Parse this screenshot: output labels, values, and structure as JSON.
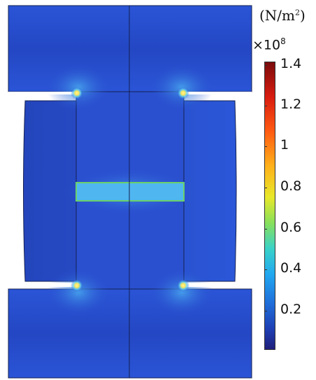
{
  "figure": {
    "units_prefix": "(N/m",
    "units_power": "2",
    "units_suffix": ")",
    "scale_base": "×10",
    "scale_exponent": "8",
    "colorbar": {
      "ticks": [
        "1.4",
        "1.2",
        "1",
        "0.8",
        "0.6",
        "0.4",
        "0.2"
      ],
      "colors": [
        "#7a0b0b",
        "#d81c10",
        "#ff5a12",
        "#ffb01a",
        "#e8e82a",
        "#88e05b",
        "#39d2c8",
        "#21a7f0",
        "#1f6ed9",
        "#1e3fb3",
        "#1f1f7a"
      ]
    },
    "field_colors": {
      "background": "#2a4fcf",
      "deep": "#1f3aa8",
      "highlight": "#4fb6f0",
      "hotspot": "#ffe75a",
      "outline": "#14204f"
    }
  }
}
